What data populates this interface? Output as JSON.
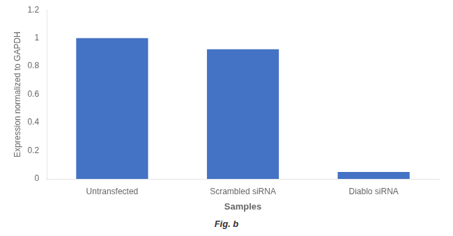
{
  "chart_data": {
    "type": "bar",
    "categories": [
      "Untransfected",
      "Scrambled siRNA",
      "Diablo siRNA"
    ],
    "values": [
      1.0,
      0.92,
      0.05
    ],
    "color": "#4472C4",
    "xlabel": "Samples",
    "ylabel": "Expression normalized to GAPDH",
    "annotation": "Fig. b",
    "ylim": [
      0,
      1.2
    ],
    "yticks": [
      0,
      0.2,
      0.4,
      0.6,
      0.8,
      1,
      1.2
    ],
    "grid": false
  }
}
